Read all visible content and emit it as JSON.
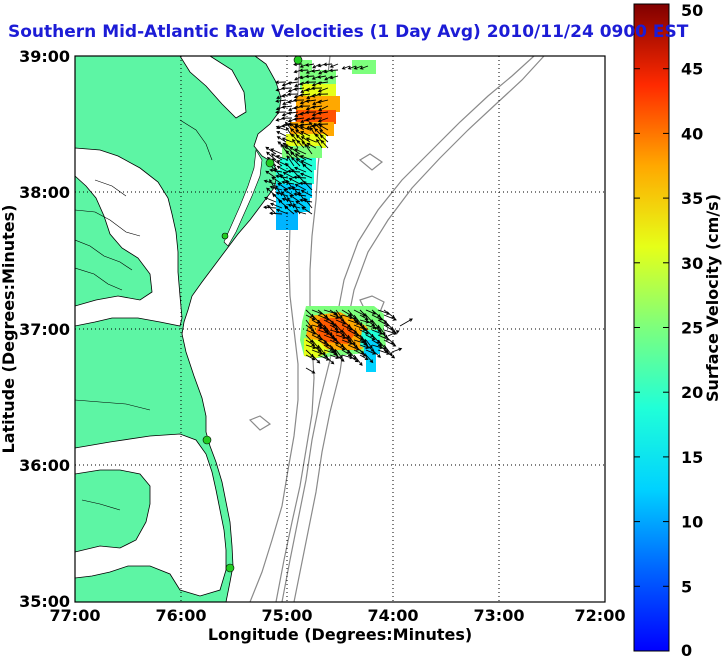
{
  "title": "Southern Mid-Atlantic Raw Velocities (1 Day Avg) 2010/11/24 0900 EST",
  "axes": {
    "xlabel": "Longitude (Degrees:Minutes)",
    "ylabel": "Latitude (Degrees:Minutes)",
    "x_ticks": [
      "77:00",
      "76:00",
      "75:00",
      "74:00",
      "73:00",
      "72:00"
    ],
    "y_ticks": [
      "39:00",
      "38:00",
      "37:00",
      "36:00",
      "35:00"
    ]
  },
  "colorbar": {
    "label": "Surface Velocity (cm/s)",
    "ticks": [
      "0",
      "5",
      "10",
      "15",
      "20",
      "25",
      "30",
      "35",
      "40",
      "45",
      "50"
    ],
    "range": [
      0,
      50
    ],
    "colormap": "jet"
  },
  "colors": {
    "land": "#5df5a4",
    "title": "#1c1cd6",
    "bathymetry": "#8a8a8a",
    "station": "#22cc22"
  },
  "chart_data": {
    "type": "map",
    "lon_range": [
      -77,
      -72
    ],
    "lat_range": [
      35,
      39
    ],
    "grid": true,
    "stations": [
      {
        "lon": -75.02,
        "lat": 39.0
      },
      {
        "lon": -75.15,
        "lat": 38.22
      },
      {
        "lon": -75.55,
        "lat": 37.67
      },
      {
        "lon": -75.72,
        "lat": 36.17
      },
      {
        "lon": -75.5,
        "lat": 35.27
      }
    ],
    "velocity_clusters": [
      {
        "name": "northern",
        "lon_range": [
          -75.15,
          -74.45
        ],
        "lat_range": [
          37.7,
          39.0
        ],
        "speed_range": [
          8,
          45
        ]
      },
      {
        "name": "southern",
        "lon_range": [
          -74.9,
          -74.1
        ],
        "lat_range": [
          36.75,
          37.15
        ],
        "speed_range": [
          10,
          40
        ]
      }
    ]
  }
}
